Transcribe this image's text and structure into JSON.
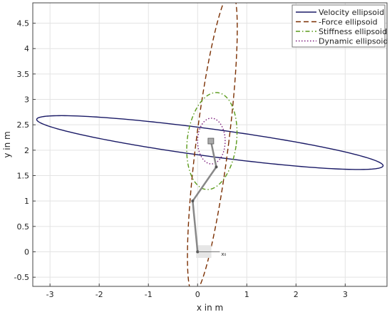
{
  "chart_data": {
    "type": "line",
    "title": "",
    "xlabel": "x in m",
    "ylabel": "y in m",
    "xlim": [
      -3.35,
      3.85
    ],
    "ylim": [
      -0.68,
      4.9
    ],
    "xticks": [
      -3,
      -2,
      -1,
      0,
      1,
      2,
      3
    ],
    "yticks": [
      -0.5,
      0,
      0.5,
      1,
      1.5,
      2,
      2.5,
      3,
      3.5,
      4,
      4.5
    ],
    "grid": true,
    "legend_position": "top-right",
    "series": [
      {
        "name": "Velocity ellipsoid",
        "color": "#1a1a66",
        "dash": "solid",
        "ellipse": {
          "center": [
            0.25,
            2.15
          ],
          "rx": 3.55,
          "ry": 0.27,
          "angle_deg": -7.4
        }
      },
      {
        "name": "-Force ellipsoid",
        "color": "#7a2e00",
        "dash": "dash",
        "ellipse": {
          "center": [
            0.3,
            2.15
          ],
          "rx": 0.33,
          "ry": 3.0,
          "angle_deg": -7.4
        }
      },
      {
        "name": "Stiffness ellipsoid",
        "color": "#5a9a1a",
        "dash": "dashdot",
        "ellipse": {
          "center": [
            0.29,
            2.18
          ],
          "rx": 0.5,
          "ry": 0.96,
          "angle_deg": -7.4
        }
      },
      {
        "name": "Dynamic ellipsoid",
        "color": "#7a1a7a",
        "dash": "dot",
        "ellipse": {
          "center": [
            0.28,
            2.18
          ],
          "rx": 0.28,
          "ry": 0.45,
          "angle_deg": 0
        }
      }
    ],
    "robot_arm": {
      "joints": [
        [
          0.0,
          0.0
        ],
        [
          -0.1,
          1.0
        ],
        [
          0.38,
          1.67
        ],
        [
          0.27,
          2.18
        ]
      ],
      "base_axis_label": "x₀"
    }
  }
}
